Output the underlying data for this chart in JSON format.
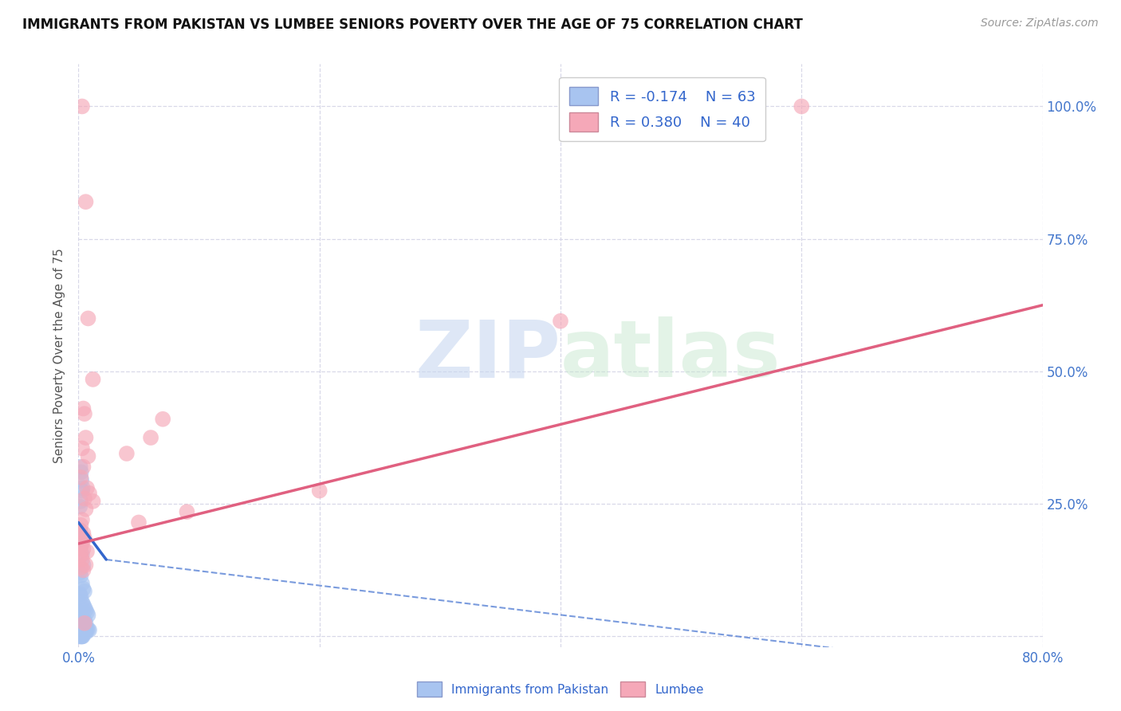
{
  "title": "IMMIGRANTS FROM PAKISTAN VS LUMBEE SENIORS POVERTY OVER THE AGE OF 75 CORRELATION CHART",
  "source": "Source: ZipAtlas.com",
  "ylabel": "Seniors Poverty Over the Age of 75",
  "xlim": [
    0.0,
    0.8
  ],
  "ylim": [
    -0.02,
    1.08
  ],
  "xticks": [
    0.0,
    0.2,
    0.4,
    0.6,
    0.8
  ],
  "xticklabels": [
    "0.0%",
    "",
    "",
    "",
    "80.0%"
  ],
  "yticks": [
    0.0,
    0.25,
    0.5,
    0.75,
    1.0
  ],
  "yticklabels_right": [
    "",
    "25.0%",
    "50.0%",
    "75.0%",
    "100.0%"
  ],
  "legend_r1": "R = -0.174",
  "legend_n1": "N = 63",
  "legend_r2": "R = 0.380",
  "legend_n2": "N = 40",
  "blue_color": "#a8c4f0",
  "pink_color": "#f5a8b8",
  "blue_line_color": "#3366cc",
  "pink_line_color": "#e06080",
  "grid_color": "#d8d8e8",
  "title_color": "#111111",
  "axis_color": "#4477cc",
  "blue_scatter": [
    [
      0.0015,
      0.32
    ],
    [
      0.0025,
      0.295
    ],
    [
      0.003,
      0.275
    ],
    [
      0.0018,
      0.255
    ],
    [
      0.0012,
      0.245
    ],
    [
      0.0022,
      0.31
    ],
    [
      0.0035,
      0.28
    ],
    [
      0.002,
      0.175
    ],
    [
      0.003,
      0.155
    ],
    [
      0.004,
      0.135
    ],
    [
      0.0015,
      0.2
    ],
    [
      0.0025,
      0.185
    ],
    [
      0.001,
      0.12
    ],
    [
      0.002,
      0.115
    ],
    [
      0.003,
      0.1
    ],
    [
      0.004,
      0.09
    ],
    [
      0.005,
      0.085
    ],
    [
      0.001,
      0.08
    ],
    [
      0.002,
      0.075
    ],
    [
      0.003,
      0.065
    ],
    [
      0.004,
      0.06
    ],
    [
      0.005,
      0.055
    ],
    [
      0.006,
      0.05
    ],
    [
      0.007,
      0.045
    ],
    [
      0.008,
      0.04
    ],
    [
      0.001,
      0.045
    ],
    [
      0.002,
      0.04
    ],
    [
      0.003,
      0.035
    ],
    [
      0.004,
      0.03
    ],
    [
      0.005,
      0.03
    ],
    [
      0.006,
      0.025
    ],
    [
      0.001,
      0.025
    ],
    [
      0.002,
      0.022
    ],
    [
      0.003,
      0.02
    ],
    [
      0.004,
      0.018
    ],
    [
      0.005,
      0.016
    ],
    [
      0.006,
      0.015
    ],
    [
      0.007,
      0.014
    ],
    [
      0.008,
      0.013
    ],
    [
      0.009,
      0.012
    ],
    [
      0.001,
      0.012
    ],
    [
      0.002,
      0.011
    ],
    [
      0.003,
      0.01
    ],
    [
      0.004,
      0.009
    ],
    [
      0.005,
      0.008
    ],
    [
      0.006,
      0.007
    ],
    [
      0.001,
      0.007
    ],
    [
      0.002,
      0.006
    ],
    [
      0.003,
      0.005
    ],
    [
      0.001,
      0.005
    ],
    [
      0.002,
      0.004
    ],
    [
      0.003,
      0.003
    ],
    [
      0.001,
      0.003
    ],
    [
      0.002,
      0.002
    ],
    [
      0.001,
      0.002
    ],
    [
      0.002,
      0.001
    ],
    [
      0.001,
      0.001
    ],
    [
      0.0015,
      0.001
    ],
    [
      0.001,
      0.0
    ],
    [
      0.002,
      0.0
    ],
    [
      0.003,
      0.0
    ],
    [
      0.0025,
      0.0
    ],
    [
      0.0035,
      0.0
    ]
  ],
  "pink_scatter": [
    [
      0.003,
      1.0
    ],
    [
      0.006,
      0.82
    ],
    [
      0.008,
      0.6
    ],
    [
      0.012,
      0.485
    ],
    [
      0.005,
      0.42
    ],
    [
      0.004,
      0.43
    ],
    [
      0.006,
      0.375
    ],
    [
      0.003,
      0.355
    ],
    [
      0.008,
      0.34
    ],
    [
      0.004,
      0.32
    ],
    [
      0.002,
      0.3
    ],
    [
      0.007,
      0.28
    ],
    [
      0.005,
      0.26
    ],
    [
      0.009,
      0.27
    ],
    [
      0.006,
      0.24
    ],
    [
      0.003,
      0.22
    ],
    [
      0.002,
      0.21
    ],
    [
      0.001,
      0.2
    ],
    [
      0.004,
      0.195
    ],
    [
      0.005,
      0.185
    ],
    [
      0.003,
      0.175
    ],
    [
      0.002,
      0.17
    ],
    [
      0.004,
      0.165
    ],
    [
      0.007,
      0.16
    ],
    [
      0.002,
      0.155
    ],
    [
      0.001,
      0.15
    ],
    [
      0.003,
      0.145
    ],
    [
      0.006,
      0.135
    ],
    [
      0.002,
      0.13
    ],
    [
      0.004,
      0.125
    ],
    [
      0.005,
      0.025
    ],
    [
      0.012,
      0.255
    ],
    [
      0.04,
      0.345
    ],
    [
      0.05,
      0.215
    ],
    [
      0.06,
      0.375
    ],
    [
      0.07,
      0.41
    ],
    [
      0.6,
      1.0
    ],
    [
      0.4,
      0.595
    ],
    [
      0.2,
      0.275
    ],
    [
      0.09,
      0.235
    ]
  ],
  "blue_trendline_solid": [
    [
      0.0,
      0.215
    ],
    [
      0.023,
      0.145
    ]
  ],
  "blue_trendline_dash": [
    [
      0.023,
      0.145
    ],
    [
      0.8,
      -0.07
    ]
  ],
  "pink_trendline": [
    [
      0.0,
      0.175
    ],
    [
      0.8,
      0.625
    ]
  ]
}
